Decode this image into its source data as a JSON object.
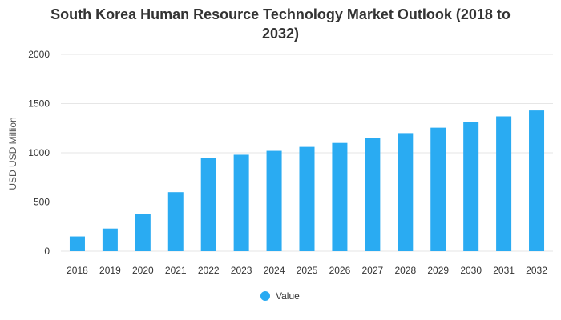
{
  "chart_data": {
    "type": "bar",
    "title_line1": "South Korea Human Resource Technology Market Outlook (2018 to",
    "title_line2": "2032)",
    "xlabel": "",
    "ylabel": "USD USD Million",
    "categories": [
      "2018",
      "2019",
      "2020",
      "2021",
      "2022",
      "2023",
      "2024",
      "2025",
      "2026",
      "2027",
      "2028",
      "2029",
      "2030",
      "2031",
      "2032"
    ],
    "series": [
      {
        "name": "Value",
        "values": [
          150,
          230,
          380,
          600,
          950,
          980,
          1020,
          1060,
          1100,
          1150,
          1200,
          1255,
          1310,
          1370,
          1430
        ],
        "color": "#2aabf2"
      }
    ],
    "ylim": [
      0,
      2000
    ],
    "yticks": [
      "0",
      "500",
      "1000",
      "1500",
      "2000"
    ],
    "yticks_values": [
      0,
      500,
      1000,
      1500,
      2000
    ],
    "grid": true,
    "legend": "bottom-center"
  }
}
